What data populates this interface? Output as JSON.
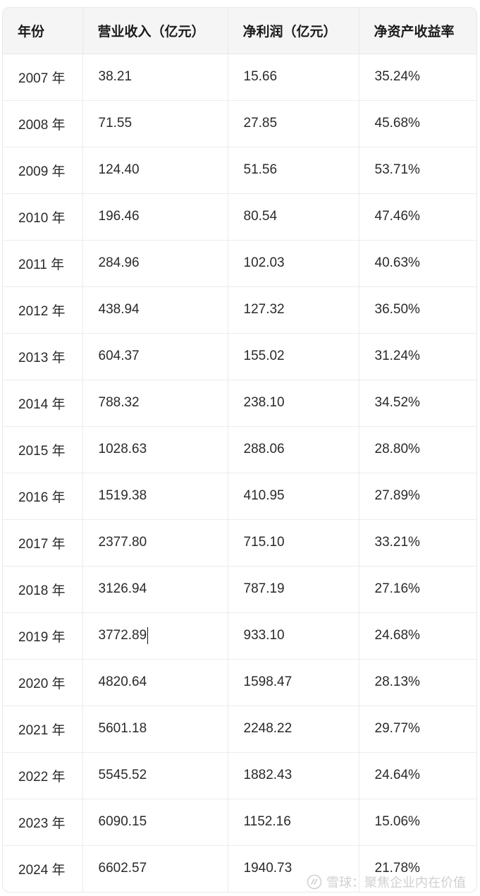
{
  "table": {
    "headers": [
      "年份",
      "营业收入（亿元）",
      "净利润（亿元）",
      "净资产收益率"
    ],
    "rows": [
      [
        "2007 年",
        "38.21",
        "15.66",
        "35.24%"
      ],
      [
        "2008 年",
        "71.55",
        "27.85",
        "45.68%"
      ],
      [
        "2009 年",
        "124.40",
        "51.56",
        "53.71%"
      ],
      [
        "2010 年",
        "196.46",
        "80.54",
        "47.46%"
      ],
      [
        "2011 年",
        "284.96",
        "102.03",
        "40.63%"
      ],
      [
        "2012 年",
        "438.94",
        "127.32",
        "36.50%"
      ],
      [
        "2013 年",
        "604.37",
        "155.02",
        "31.24%"
      ],
      [
        "2014 年",
        "788.32",
        "238.10",
        "34.52%"
      ],
      [
        "2015 年",
        "1028.63",
        "288.06",
        "28.80%"
      ],
      [
        "2016 年",
        "1519.38",
        "410.95",
        "27.89%"
      ],
      [
        "2017 年",
        "2377.80",
        "715.10",
        "33.21%"
      ],
      [
        "2018 年",
        "3126.94",
        "787.19",
        "27.16%"
      ],
      [
        "2019 年",
        "3772.89",
        "933.10",
        "24.68%"
      ],
      [
        "2020 年",
        "4820.64",
        "1598.47",
        "28.13%"
      ],
      [
        "2021 年",
        "5601.18",
        "2248.22",
        "29.77%"
      ],
      [
        "2022 年",
        "5545.52",
        "1882.43",
        "24.64%"
      ],
      [
        "2023 年",
        "6090.15",
        "1152.16",
        "15.06%"
      ],
      [
        "2024 年",
        "6602.57",
        "1940.73",
        "21.78%"
      ]
    ]
  },
  "watermark": {
    "text": "雪球：聚焦企业内在价值",
    "icon": "xueqiu-logo-icon"
  }
}
